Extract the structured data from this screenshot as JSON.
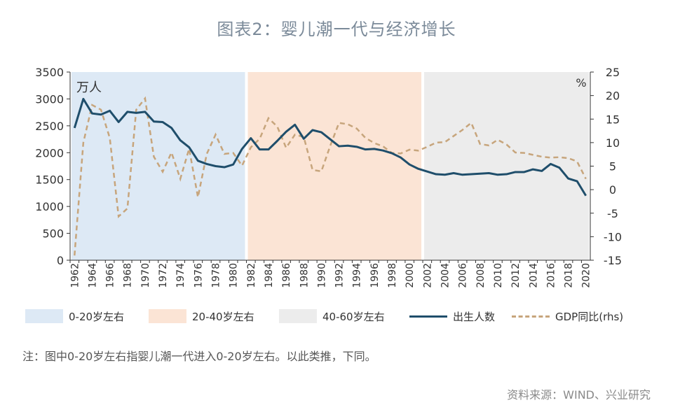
{
  "title": "图表2：婴儿潮一代与经济增长",
  "note": "注：图中0-20岁左右指婴儿潮一代进入0-20岁左右。以此类推，下同。",
  "source": "资料来源：WIND、兴业研究",
  "colors": {
    "band1": "#dde9f5",
    "band2": "#fbe4d5",
    "band3": "#ececec",
    "births": "#1f4e6b",
    "gdp": "#c7a57c"
  },
  "legend": {
    "band1": "0-20岁左右",
    "band2": "20-40岁左右",
    "band3": "40-60岁左右",
    "births": "出生人数",
    "gdp": "GDP同比(rhs)"
  },
  "chart_data": {
    "type": "line",
    "title": "图表2：婴儿潮一代与经济增长",
    "x": [
      1962,
      1963,
      1964,
      1965,
      1966,
      1967,
      1968,
      1969,
      1970,
      1971,
      1972,
      1973,
      1974,
      1975,
      1976,
      1977,
      1978,
      1979,
      1980,
      1981,
      1982,
      1983,
      1984,
      1985,
      1986,
      1987,
      1988,
      1989,
      1990,
      1991,
      1992,
      1993,
      1994,
      1995,
      1996,
      1997,
      1998,
      1999,
      2000,
      2001,
      2002,
      2003,
      2004,
      2005,
      2006,
      2007,
      2008,
      2009,
      2010,
      2011,
      2012,
      2013,
      2014,
      2015,
      2016,
      2017,
      2018,
      2019,
      2020
    ],
    "x_ticks": [
      "1962",
      "1964",
      "1966",
      "1968",
      "1970",
      "1972",
      "1974",
      "1976",
      "1978",
      "1980",
      "1982",
      "1984",
      "1986",
      "1988",
      "1990",
      "1992",
      "1994",
      "1996",
      "1998",
      "2000",
      "2002",
      "2004",
      "2006",
      "2008",
      "2010",
      "2012",
      "2014",
      "2016",
      "2018",
      "2020"
    ],
    "ylabel_left": "万人",
    "ylabel_right": "%",
    "ylim_left": [
      0,
      3500
    ],
    "yticks_left": [
      "0",
      "500",
      "1000",
      "1500",
      "2000",
      "2500",
      "3000",
      "3500"
    ],
    "ylim_right": [
      -15,
      25
    ],
    "yticks_right": [
      "-15",
      "-10",
      "-5",
      "0",
      "5",
      "10",
      "15",
      "20",
      "25"
    ],
    "bands": [
      {
        "from": 1962,
        "to": 1981,
        "label": "0-20岁左右"
      },
      {
        "from": 1982,
        "to": 2001,
        "label": "20-40岁左右"
      },
      {
        "from": 2002,
        "to": 2020,
        "label": "40-60岁左右"
      }
    ],
    "series": [
      {
        "name": "出生人数",
        "axis": "left",
        "style": "solid",
        "values": [
          2460,
          3000,
          2730,
          2710,
          2780,
          2570,
          2760,
          2740,
          2760,
          2580,
          2570,
          2460,
          2230,
          2100,
          1850,
          1790,
          1750,
          1730,
          1780,
          2070,
          2270,
          2060,
          2060,
          2220,
          2390,
          2520,
          2260,
          2420,
          2380,
          2250,
          2120,
          2130,
          2110,
          2060,
          2070,
          2040,
          1990,
          1910,
          1780,
          1700,
          1650,
          1600,
          1590,
          1620,
          1590,
          1600,
          1610,
          1620,
          1590,
          1600,
          1640,
          1640,
          1690,
          1660,
          1790,
          1720,
          1520,
          1470,
          1200
        ]
      },
      {
        "name": "GDP同比(rhs)",
        "axis": "right",
        "style": "dashed",
        "values": [
          -14,
          10,
          18,
          17,
          11,
          -5.7,
          -4,
          17,
          19.4,
          7,
          3.8,
          7.9,
          2.3,
          8.7,
          -1.6,
          7.6,
          11.7,
          7.6,
          7.8,
          5.1,
          9,
          10.8,
          15.2,
          13.4,
          8.9,
          11.7,
          11.2,
          4.2,
          3.9,
          9.3,
          14.2,
          13.9,
          13,
          11,
          9.9,
          9.2,
          7.8,
          7.7,
          8.5,
          8.3,
          9.1,
          10,
          10.1,
          11.4,
          12.7,
          14.2,
          9.7,
          9.4,
          10.6,
          9.6,
          7.9,
          7.8,
          7.4,
          7,
          6.8,
          6.9,
          6.7,
          6,
          2.3
        ]
      }
    ],
    "legend_position": "bottom",
    "grid": false
  }
}
